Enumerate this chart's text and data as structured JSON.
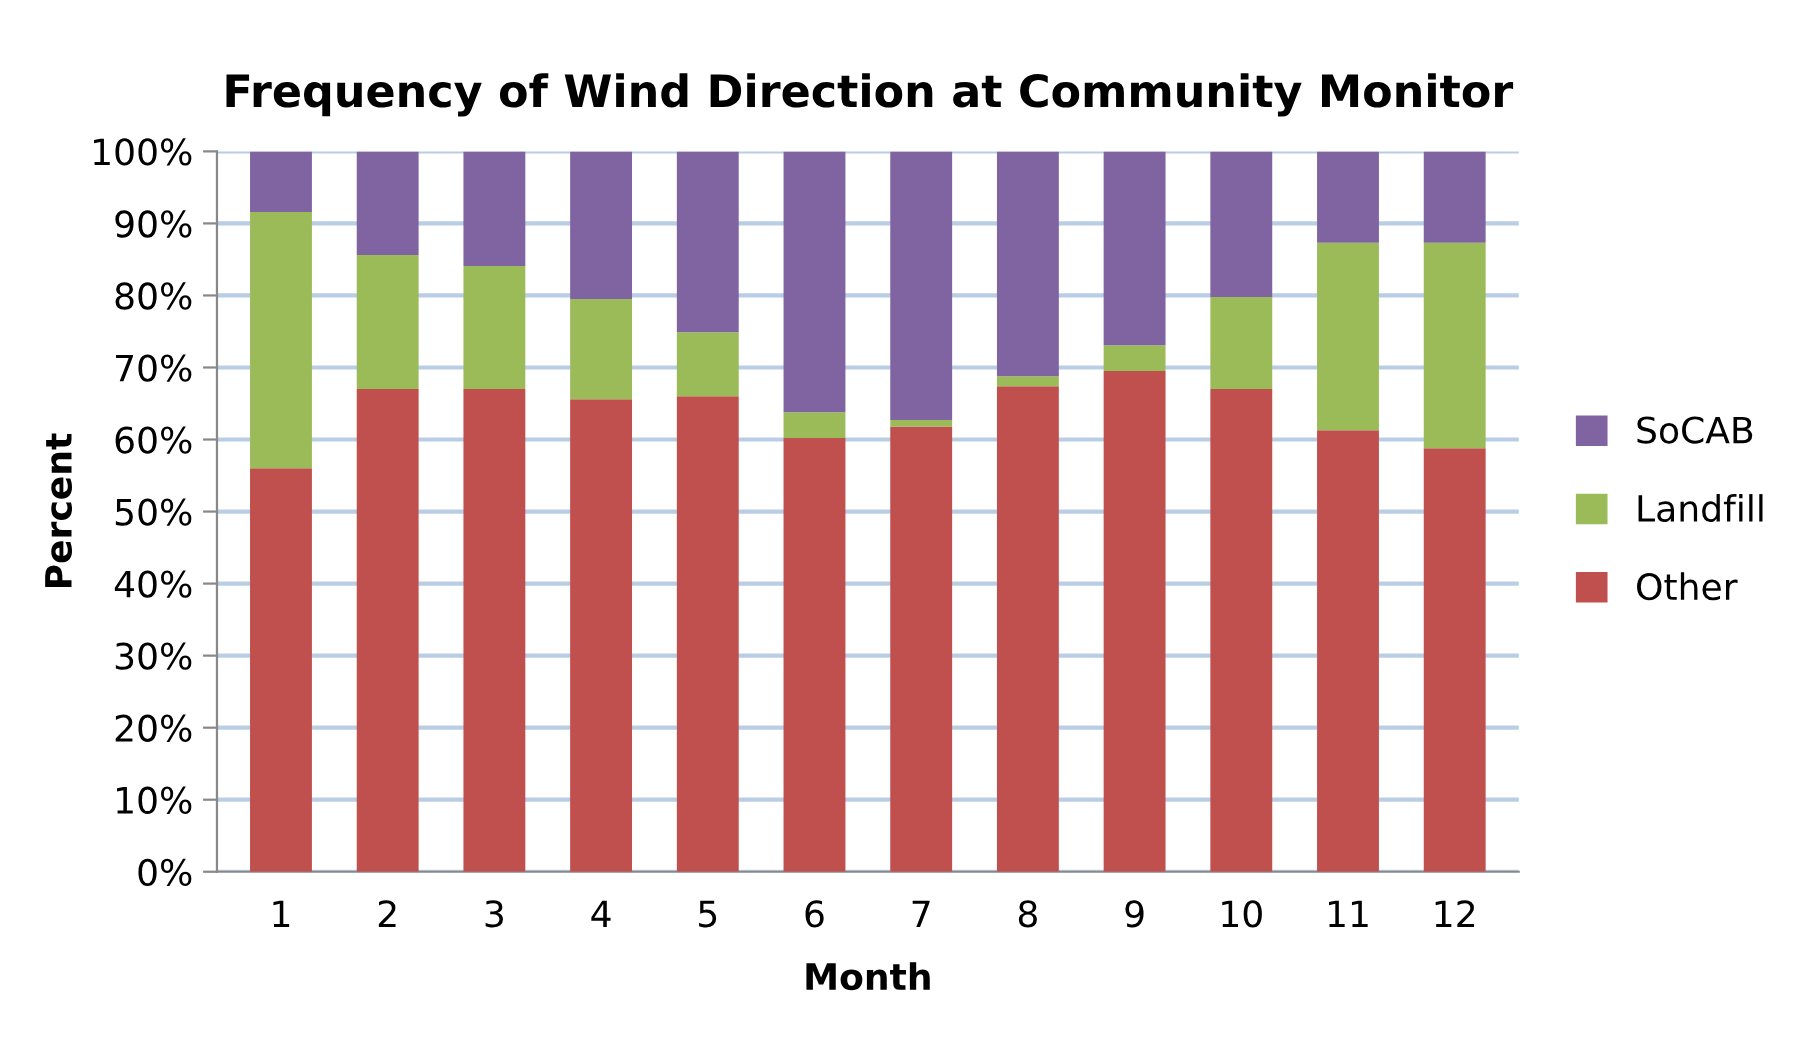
{
  "chart_data": {
    "type": "bar",
    "stacked": true,
    "title": "Frequency of Wind Direction at Community Monitor",
    "xlabel": "Month",
    "ylabel": "Percent",
    "categories": [
      "1",
      "2",
      "3",
      "4",
      "5",
      "6",
      "7",
      "8",
      "9",
      "10",
      "11",
      "12"
    ],
    "series": [
      {
        "name": "Other",
        "color": "#c0504d",
        "values": [
          56.0,
          67.0,
          67.0,
          65.6,
          66.0,
          60.2,
          61.8,
          67.4,
          69.5,
          67.0,
          61.3,
          58.8
        ]
      },
      {
        "name": "Landfill",
        "color": "#9bbb59",
        "values": [
          35.6,
          18.6,
          17.1,
          13.9,
          8.9,
          3.6,
          0.9,
          1.4,
          3.6,
          12.8,
          26.0,
          28.5
        ]
      },
      {
        "name": "SoCAB",
        "color": "#8064a2",
        "values": [
          8.4,
          14.4,
          15.9,
          20.5,
          25.1,
          36.2,
          37.3,
          31.2,
          26.9,
          20.2,
          12.7,
          12.7
        ]
      }
    ],
    "ylim": [
      0,
      100
    ],
    "yticks": [
      {
        "value": 0,
        "label": "0%"
      },
      {
        "value": 10,
        "label": "10%"
      },
      {
        "value": 20,
        "label": "20%"
      },
      {
        "value": 30,
        "label": "30%"
      },
      {
        "value": 40,
        "label": "40%"
      },
      {
        "value": 50,
        "label": "50%"
      },
      {
        "value": 60,
        "label": "60%"
      },
      {
        "value": 70,
        "label": "70%"
      },
      {
        "value": 80,
        "label": "80%"
      },
      {
        "value": 90,
        "label": "90%"
      },
      {
        "value": 100,
        "label": "100%"
      }
    ],
    "grid": "y",
    "legend": "right"
  }
}
